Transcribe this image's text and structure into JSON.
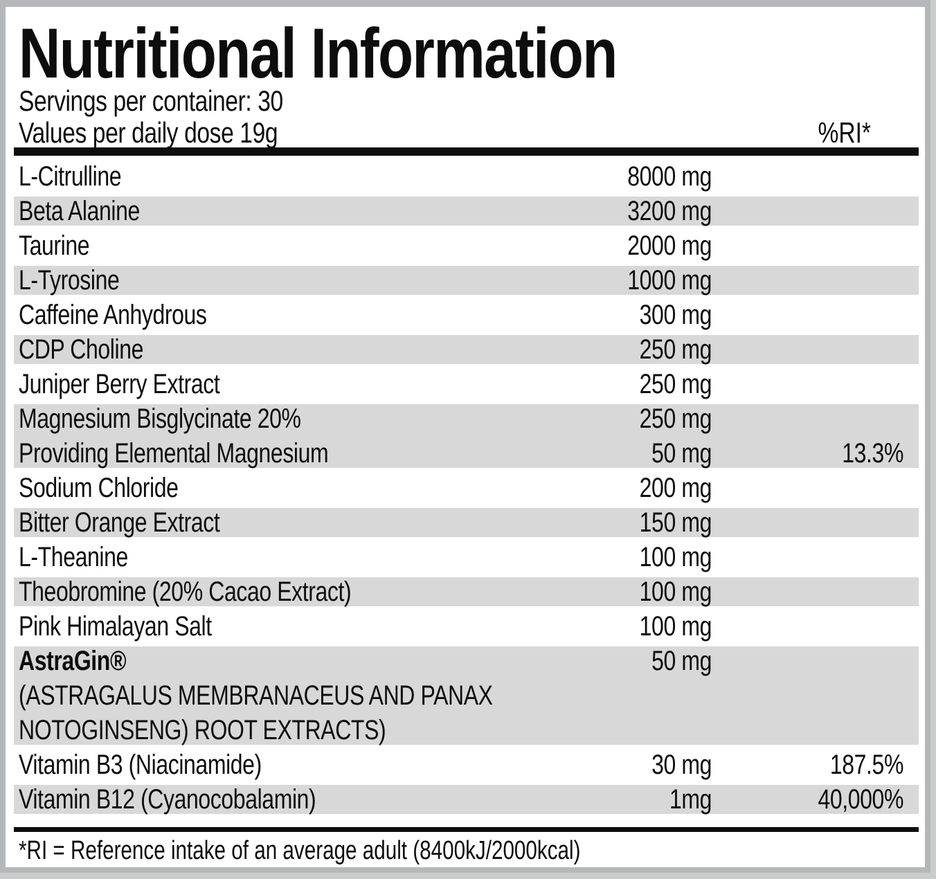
{
  "label": {
    "title": "Nutritional Information",
    "servings_line": "Servings per container: 30",
    "dose_line": "Values per daily dose 19g",
    "ri_header": "%RI*",
    "footnote": "*RI = Reference intake of an average adult (8400kJ/2000kcal)",
    "colors": {
      "shade": "#d8d8d8",
      "frame": "#b5b8ba",
      "page": "#c9cccb",
      "bar": "#0d0d0d"
    },
    "table": {
      "rows": [
        {
          "name": "L-Citrulline",
          "amount": "8000 mg",
          "ri": ""
        },
        {
          "name": "Beta Alanine",
          "amount": "3200 mg",
          "ri": ""
        },
        {
          "name": "Taurine",
          "amount": "2000 mg",
          "ri": ""
        },
        {
          "name": "L-Tyrosine",
          "amount": "1000 mg",
          "ri": ""
        },
        {
          "name": "Caffeine Anhydrous",
          "amount": "300 mg",
          "ri": ""
        },
        {
          "name": "CDP Choline",
          "amount": "250 mg",
          "ri": ""
        },
        {
          "name": "Juniper Berry Extract",
          "amount": "250 mg",
          "ri": ""
        },
        {
          "name": "Magnesium Bisglycinate 20%",
          "amount": "250 mg",
          "ri": ""
        },
        {
          "name": "Providing Elemental Magnesium",
          "amount": "50 mg",
          "ri": "13.3%"
        },
        {
          "name": "Sodium Chloride",
          "amount": "200 mg",
          "ri": ""
        },
        {
          "name": "Bitter Orange Extract",
          "amount": "150 mg",
          "ri": ""
        },
        {
          "name": "L-Theanine",
          "amount": "100 mg",
          "ri": ""
        },
        {
          "name": "Theobromine (20% Cacao Extract)",
          "amount": "100 mg",
          "ri": ""
        },
        {
          "name": "Pink Himalayan Salt",
          "amount": "100 mg",
          "ri": ""
        },
        {
          "name": "AstraGin®",
          "amount": "50 mg",
          "ri": ""
        },
        {
          "name": "(ASTRAGALUS MEMBRANACEUS AND PANAX",
          "amount": "",
          "ri": ""
        },
        {
          "name": "NOTOGINSENG) ROOT EXTRACTS)",
          "amount": "",
          "ri": ""
        },
        {
          "name": "Vitamin B3 (Niacinamide)",
          "amount": "30 mg",
          "ri": "187.5%"
        },
        {
          "name": "Vitamin B12 (Cyanocobalamin)",
          "amount": "1mg",
          "ri": "40,000%"
        }
      ]
    }
  }
}
